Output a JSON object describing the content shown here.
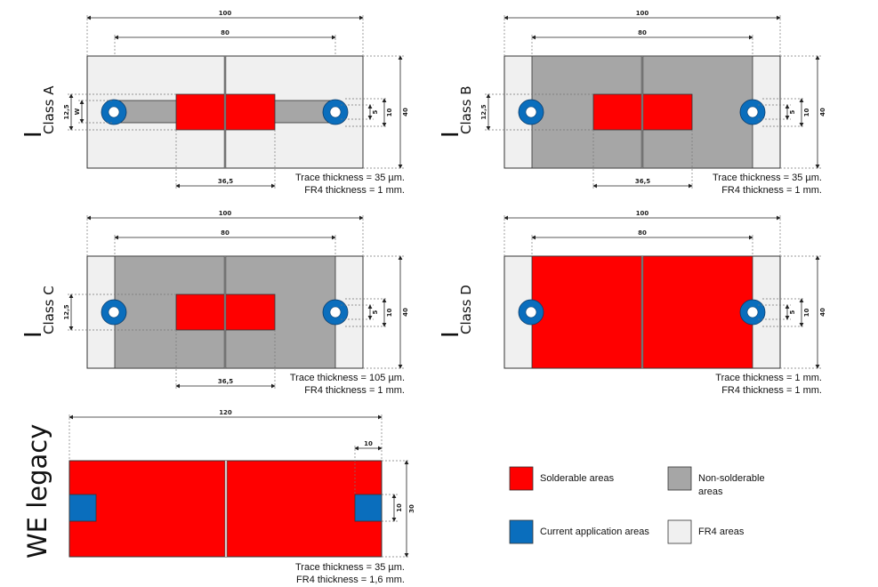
{
  "colors": {
    "solderable": "#ff0000",
    "current": "#0a6ebd",
    "nonsolderable": "#a6a6a6",
    "fr4": "#f0f0f0",
    "line": "#333333"
  },
  "panels": [
    {
      "id": "class-a",
      "kind": "A",
      "label_main": "I",
      "label_sub": "Class A",
      "dim_total": "100",
      "dim_inner": "80",
      "dim_pad": "36,5",
      "dim_height": "40",
      "dim_ring_outer": "10",
      "dim_ring_inner": "5",
      "dim_pad_height": "12,5",
      "dim_trace": "W",
      "trace_note": "Trace thickness = 35 µm.",
      "fr4_note": "FR4 thickness = 1 mm."
    },
    {
      "id": "class-b",
      "kind": "B",
      "label_main": "I",
      "label_sub": "Class B",
      "dim_total": "100",
      "dim_inner": "80",
      "dim_pad": "36,5",
      "dim_height": "40",
      "dim_ring_outer": "10",
      "dim_ring_inner": "5",
      "dim_pad_height": "12,5",
      "trace_note": "Trace thickness = 35 µm.",
      "fr4_note": "FR4 thickness = 1 mm."
    },
    {
      "id": "class-c",
      "kind": "C",
      "label_main": "I",
      "label_sub": "Class C",
      "dim_total": "100",
      "dim_inner": "80",
      "dim_pad": "36,5",
      "dim_height": "40",
      "dim_ring_outer": "10",
      "dim_ring_inner": "5",
      "dim_pad_height": "12,5",
      "trace_note": "Trace thickness = 105 µm.",
      "fr4_note": "FR4 thickness = 1 mm."
    },
    {
      "id": "class-d",
      "kind": "D",
      "label_main": "I",
      "label_sub": "Class D",
      "dim_total": "100",
      "dim_inner": "80",
      "dim_height": "40",
      "dim_ring_outer": "10",
      "dim_ring_inner": "5",
      "trace_note": "Trace thickness = 1 mm.",
      "fr4_note": "FR4 thickness = 1 mm."
    }
  ],
  "legacy": {
    "label": "WE legacy",
    "dim_total": "120",
    "dim_pad_width": "10",
    "dim_pad_height": "10",
    "dim_height": "30",
    "trace_note": "Trace thickness = 35 µm.",
    "fr4_note": "FR4 thickness = 1,6 mm."
  },
  "legend": [
    {
      "key": "solderable",
      "lines": [
        "Solderable areas"
      ]
    },
    {
      "key": "nonsolderable",
      "lines": [
        "Non-solderable",
        "areas"
      ]
    },
    {
      "key": "current",
      "lines": [
        "Current application areas"
      ]
    },
    {
      "key": "fr4",
      "lines": [
        "FR4 areas"
      ]
    }
  ]
}
